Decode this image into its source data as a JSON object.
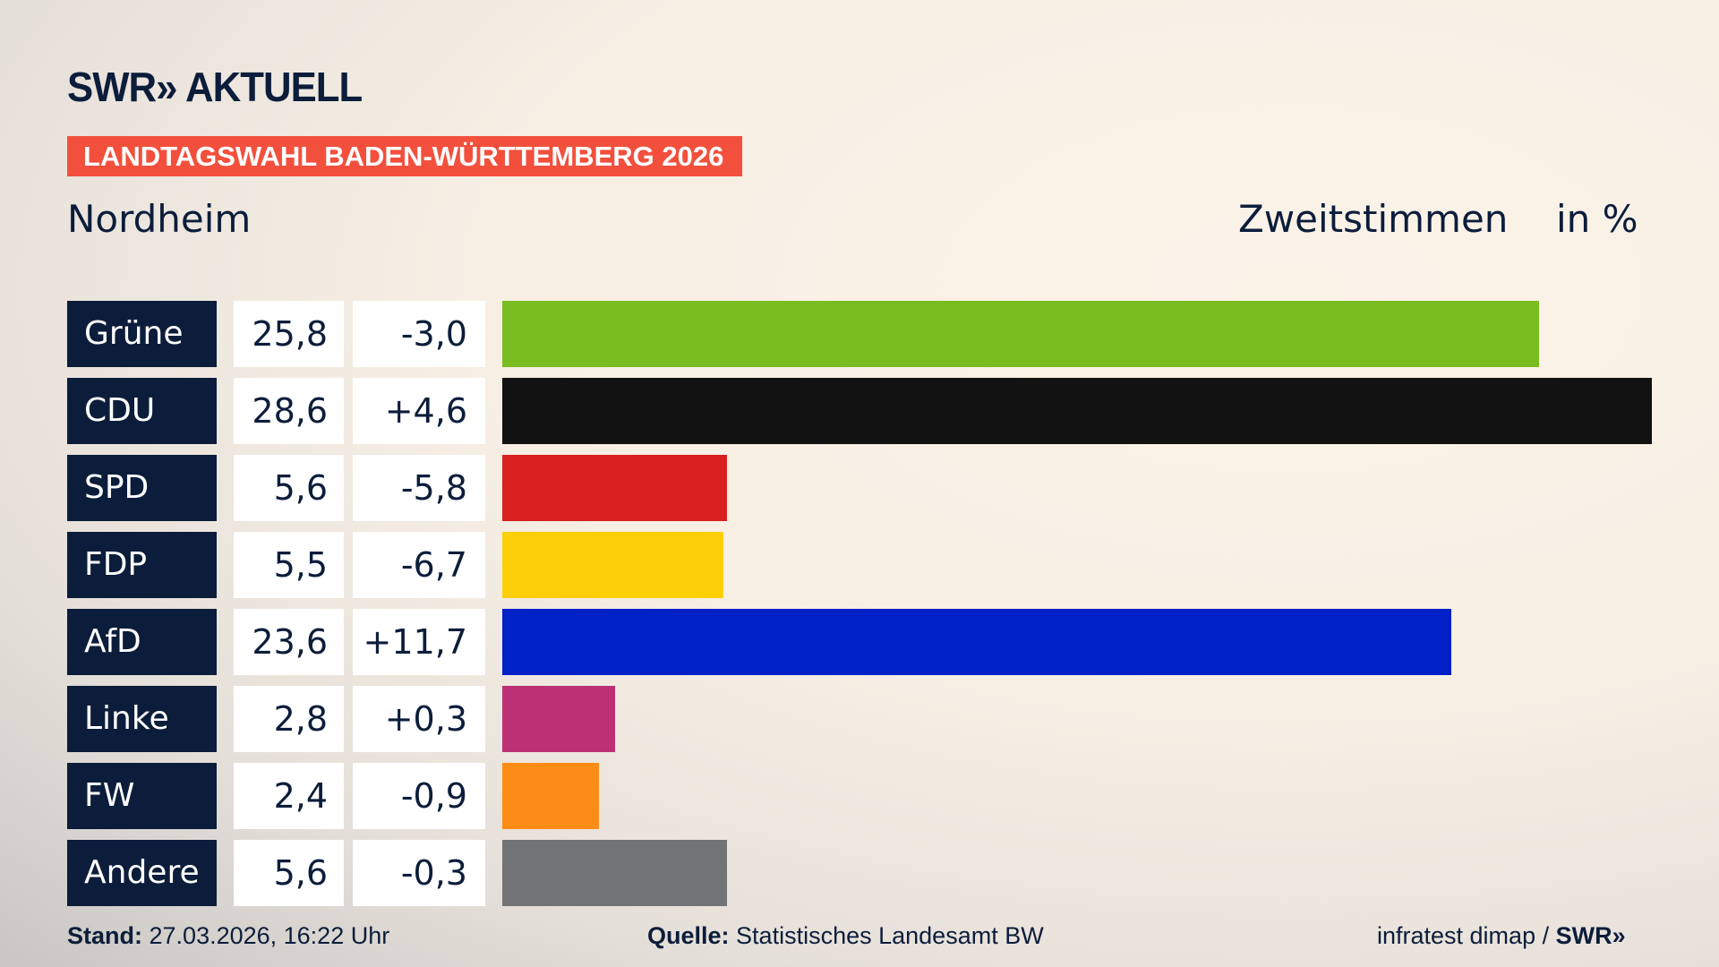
{
  "brand": {
    "logo": "SWR» AKTUELL",
    "banner": "LANDTAGSWAHL BADEN-WÜRTTEMBERG 2026"
  },
  "header": {
    "region": "Nordheim",
    "metric": "Zweitstimmen",
    "unit": "in %"
  },
  "chart_data": {
    "type": "bar",
    "title": "Zweitstimmen in %",
    "categories": [
      "Grüne",
      "CDU",
      "SPD",
      "FDP",
      "AfD",
      "Linke",
      "FW",
      "Andere"
    ],
    "values": [
      25.8,
      28.6,
      5.6,
      5.5,
      23.6,
      2.8,
      2.4,
      5.6
    ],
    "values_label": [
      "25,8",
      "28,6",
      "5,6",
      "5,5",
      "23,6",
      "2,8",
      "2,4",
      "5,6"
    ],
    "diff_label": [
      "-3,0",
      "+4,6",
      "-5,8",
      "-6,7",
      "+11,7",
      "+0,3",
      "-0,9",
      "-0,3"
    ],
    "diff": [
      -3.0,
      4.6,
      -5.8,
      -6.7,
      11.7,
      0.3,
      -0.9,
      -0.3
    ],
    "colors": [
      "#79bc1f",
      "#121212",
      "#d8201f",
      "#fdcf09",
      "#0020c8",
      "#bd3076",
      "#fd8c17",
      "#727375"
    ],
    "xlim": [
      0,
      28.6
    ]
  },
  "footer": {
    "stand_label": "Stand:",
    "stand_value": "27.03.2026, 16:22 Uhr",
    "source_label": "Quelle:",
    "source_value": "Statistisches Landesamt BW",
    "credit": "infratest dimap / ",
    "credit_brand": "SWR»"
  }
}
